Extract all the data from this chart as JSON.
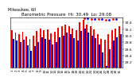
{
  "title": "Barometric Pressure  Hi: 30.49  Lo: 29.08",
  "subtitle": "Milwaukee, WI",
  "days": [
    "1",
    "2",
    "3",
    "4",
    "5",
    "6",
    "7",
    "8",
    "9",
    "10",
    "11",
    "12",
    "13",
    "14",
    "15",
    "16",
    "17",
    "18",
    "19",
    "20",
    "21",
    "22",
    "23",
    "24",
    "25",
    "26",
    "27",
    "28",
    "29",
    "30",
    "31"
  ],
  "highs": [
    30.18,
    30.1,
    30.05,
    30.12,
    29.98,
    29.9,
    30.0,
    30.15,
    30.22,
    30.18,
    30.2,
    30.08,
    30.12,
    30.25,
    30.28,
    30.35,
    30.3,
    30.22,
    30.18,
    30.4,
    30.49,
    30.35,
    30.28,
    30.2,
    30.05,
    29.9,
    29.88,
    30.05,
    30.18,
    30.22,
    30.3
  ],
  "lows": [
    29.9,
    29.85,
    29.8,
    29.88,
    29.72,
    29.55,
    29.68,
    29.82,
    29.95,
    29.9,
    29.88,
    29.75,
    29.82,
    29.95,
    30.0,
    30.1,
    30.05,
    29.92,
    29.85,
    30.15,
    30.22,
    30.1,
    30.0,
    29.92,
    29.75,
    29.5,
    29.08,
    29.6,
    29.85,
    29.95,
    30.05
  ],
  "high_color": "#ff0000",
  "low_color": "#0000cc",
  "background_color": "#ffffff",
  "ylim_min": 29.05,
  "ylim_max": 30.55,
  "ytick_values": [
    29.2,
    29.4,
    29.6,
    29.8,
    30.0,
    30.2,
    30.4
  ],
  "ytick_labels": [
    "29.2",
    "29.4",
    "29.6",
    "29.8",
    "30.0",
    "30.2",
    "30.4"
  ],
  "grid_color": "#cccccc",
  "title_fontsize": 4.0,
  "tick_fontsize": 3.2,
  "bar_width": 0.42,
  "dashed_vlines": [
    21,
    22,
    23
  ]
}
